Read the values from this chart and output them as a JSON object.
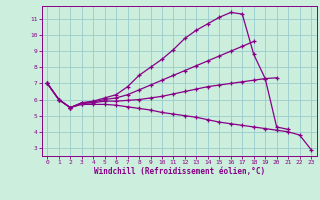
{
  "xlabel": "Windchill (Refroidissement éolien,°C)",
  "bg_color": "#cceedd",
  "line_color": "#880088",
  "grid_color": "#99cccc",
  "xlim": [
    -0.5,
    23.5
  ],
  "ylim": [
    2.5,
    11.8
  ],
  "yticks": [
    3,
    4,
    5,
    6,
    7,
    8,
    9,
    10,
    11
  ],
  "xticks": [
    0,
    1,
    2,
    3,
    4,
    5,
    6,
    7,
    8,
    9,
    10,
    11,
    12,
    13,
    14,
    15,
    16,
    17,
    18,
    19,
    20,
    21,
    22,
    23
  ],
  "line1_x": [
    0,
    1,
    2,
    3,
    4,
    5,
    6,
    7,
    8,
    9,
    10,
    11,
    12,
    13,
    14,
    15,
    16,
    17,
    18,
    19,
    20,
    21,
    22,
    23
  ],
  "line1_y": [
    7.0,
    6.0,
    5.5,
    5.8,
    5.9,
    6.1,
    6.3,
    6.8,
    7.5,
    8.0,
    8.5,
    9.1,
    9.8,
    10.3,
    10.7,
    11.1,
    11.4,
    11.3,
    8.8,
    7.3,
    4.3,
    4.15,
    null,
    null
  ],
  "line2_x": [
    0,
    1,
    2,
    3,
    4,
    5,
    6,
    7,
    8,
    9,
    10,
    11,
    12,
    13,
    14,
    15,
    16,
    17,
    18,
    19,
    20,
    21,
    22,
    23
  ],
  "line2_y": [
    7.0,
    6.0,
    5.5,
    5.8,
    5.85,
    6.0,
    6.1,
    6.3,
    6.6,
    6.9,
    7.2,
    7.5,
    7.8,
    8.1,
    8.4,
    8.7,
    9.0,
    9.3,
    9.6,
    null,
    null,
    null,
    null,
    null
  ],
  "line3_x": [
    0,
    1,
    2,
    3,
    4,
    5,
    6,
    7,
    8,
    9,
    10,
    11,
    12,
    13,
    14,
    15,
    16,
    17,
    18,
    19,
    20,
    21,
    22,
    23
  ],
  "line3_y": [
    7.0,
    6.0,
    5.5,
    5.75,
    5.8,
    5.9,
    5.9,
    5.95,
    6.0,
    6.1,
    6.2,
    6.35,
    6.5,
    6.65,
    6.8,
    6.9,
    7.0,
    7.1,
    7.2,
    7.3,
    7.35,
    null,
    null,
    null
  ],
  "line4_x": [
    0,
    1,
    2,
    3,
    4,
    5,
    6,
    7,
    8,
    9,
    10,
    11,
    12,
    13,
    14,
    15,
    16,
    17,
    18,
    19,
    20,
    21,
    22,
    23
  ],
  "line4_y": [
    7.0,
    6.0,
    5.5,
    5.7,
    5.7,
    5.7,
    5.65,
    5.55,
    5.45,
    5.35,
    5.2,
    5.1,
    5.0,
    4.9,
    4.75,
    4.6,
    4.5,
    4.4,
    4.3,
    4.2,
    4.1,
    4.0,
    3.8,
    2.9
  ]
}
